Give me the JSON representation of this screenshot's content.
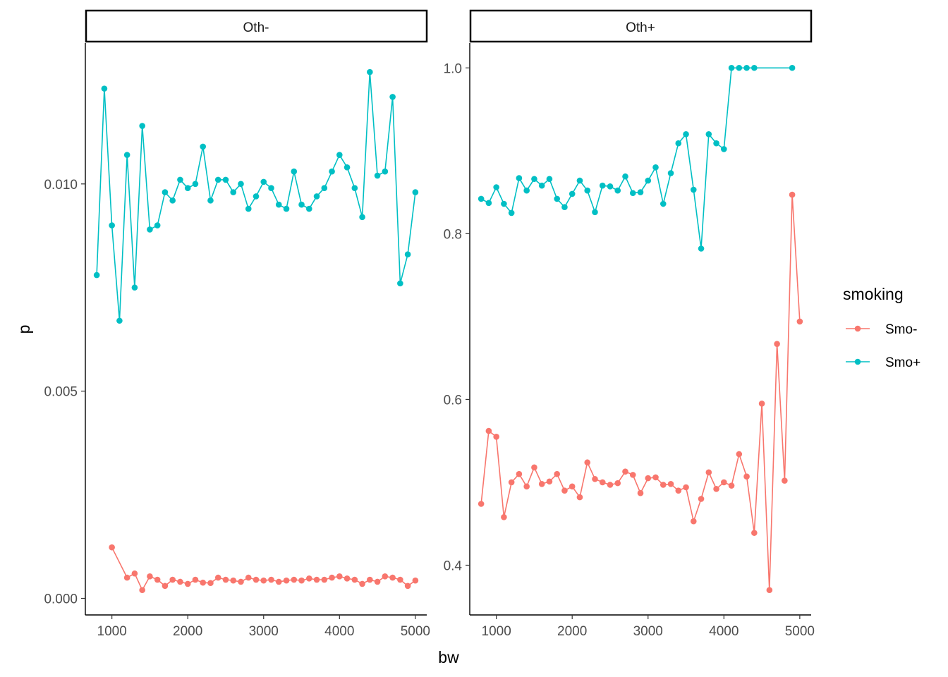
{
  "chart_data": {
    "type": "line",
    "xlabel": "bw",
    "ylabel": "p",
    "legend": {
      "title": "smoking",
      "position": "right",
      "entries": [
        {
          "label": "Smo-",
          "color": "#F8766D"
        },
        {
          "label": "Smo+",
          "color": "#00BFC4"
        }
      ]
    },
    "x_ticks": [
      1000,
      2000,
      3000,
      4000,
      5000
    ],
    "x_tick_labels": [
      "1000",
      "2000",
      "3000",
      "4000",
      "5000"
    ],
    "xlim": [
      650,
      5150
    ],
    "panels": [
      {
        "strip": "Oth-",
        "ylim": [
          -0.0004,
          0.0134
        ],
        "y_ticks": [
          0.0,
          0.005,
          0.01
        ],
        "y_tick_labels": [
          "0.000",
          "0.005",
          "0.010"
        ],
        "series": [
          {
            "name": "Smo-",
            "x": [
              1000,
              1200,
              1300,
              1400,
              1500,
              1600,
              1700,
              1800,
              1900,
              2000,
              2100,
              2200,
              2300,
              2400,
              2500,
              2600,
              2700,
              2800,
              2900,
              3000,
              3100,
              3200,
              3300,
              3400,
              3500,
              3600,
              3700,
              3800,
              3900,
              4000,
              4100,
              4200,
              4300,
              4400,
              4500,
              4600,
              4700,
              4800,
              4900,
              5000
            ],
            "y": [
              0.00123,
              0.0005,
              0.0006,
              0.0002,
              0.00053,
              0.00045,
              0.0003,
              0.00045,
              0.0004,
              0.00035,
              0.00045,
              0.00038,
              0.00037,
              0.0005,
              0.00045,
              0.00043,
              0.0004,
              0.0005,
              0.00045,
              0.00043,
              0.00045,
              0.0004,
              0.00043,
              0.00045,
              0.00043,
              0.00048,
              0.00045,
              0.00045,
              0.0005,
              0.00053,
              0.00048,
              0.00045,
              0.00035,
              0.00045,
              0.0004,
              0.00053,
              0.0005,
              0.00045,
              0.0003,
              0.00043
            ]
          },
          {
            "name": "Smo+",
            "x": [
              800,
              900,
              1000,
              1100,
              1200,
              1300,
              1400,
              1500,
              1600,
              1700,
              1800,
              1900,
              2000,
              2100,
              2200,
              2300,
              2400,
              2500,
              2600,
              2700,
              2800,
              2900,
              3000,
              3100,
              3200,
              3300,
              3400,
              3500,
              3600,
              3700,
              3800,
              3900,
              4000,
              4100,
              4200,
              4300,
              4400,
              4500,
              4600,
              4700,
              4800,
              4900,
              5000
            ],
            "y": [
              0.0078,
              0.0123,
              0.009,
              0.0067,
              0.0107,
              0.0075,
              0.0114,
              0.0089,
              0.009,
              0.0098,
              0.0096,
              0.0101,
              0.0099,
              0.01,
              0.0109,
              0.0096,
              0.0101,
              0.0101,
              0.0098,
              0.01,
              0.0094,
              0.0097,
              0.01005,
              0.0099,
              0.0095,
              0.0094,
              0.0103,
              0.0095,
              0.0094,
              0.0097,
              0.0099,
              0.0103,
              0.0107,
              0.0104,
              0.0099,
              0.0092,
              0.0127,
              0.0102,
              0.0103,
              0.0121,
              0.0076,
              0.0083,
              0.0098
            ]
          }
        ]
      },
      {
        "strip": "Oth+",
        "ylim": [
          0.34,
          1.03
        ],
        "y_ticks": [
          0.4,
          0.6,
          0.8,
          1.0
        ],
        "y_tick_labels": [
          "0.4",
          "0.6",
          "0.8",
          "1.0"
        ],
        "series": [
          {
            "name": "Smo-",
            "x": [
              800,
              900,
              1000,
              1100,
              1200,
              1300,
              1400,
              1500,
              1600,
              1700,
              1800,
              1900,
              2000,
              2100,
              2200,
              2300,
              2400,
              2500,
              2600,
              2700,
              2800,
              2900,
              3000,
              3100,
              3200,
              3300,
              3400,
              3500,
              3600,
              3700,
              3800,
              3900,
              4000,
              4100,
              4200,
              4300,
              4400,
              4500,
              4600,
              4700,
              4800,
              4900,
              5000
            ],
            "y": [
              0.474,
              0.562,
              0.555,
              0.458,
              0.5,
              0.51,
              0.495,
              0.518,
              0.498,
              0.501,
              0.51,
              0.49,
              0.495,
              0.482,
              0.524,
              0.504,
              0.5,
              0.497,
              0.499,
              0.513,
              0.509,
              0.487,
              0.505,
              0.506,
              0.497,
              0.498,
              0.49,
              0.494,
              0.453,
              0.48,
              0.512,
              0.492,
              0.5,
              0.496,
              0.534,
              0.507,
              0.439,
              0.595,
              0.37,
              0.667,
              0.502,
              0.847,
              0.694
            ]
          },
          {
            "name": "Smo+",
            "x": [
              800,
              900,
              1000,
              1100,
              1200,
              1300,
              1400,
              1500,
              1600,
              1700,
              1800,
              1900,
              2000,
              2100,
              2200,
              2300,
              2400,
              2500,
              2600,
              2700,
              2800,
              2900,
              3000,
              3100,
              3200,
              3300,
              3400,
              3500,
              3600,
              3700,
              3800,
              3900,
              4000,
              4100,
              4200,
              4300,
              4400,
              4900
            ],
            "y": [
              0.842,
              0.837,
              0.856,
              0.836,
              0.825,
              0.867,
              0.852,
              0.866,
              0.858,
              0.866,
              0.842,
              0.832,
              0.848,
              0.864,
              0.852,
              0.826,
              0.858,
              0.857,
              0.852,
              0.869,
              0.849,
              0.85,
              0.864,
              0.88,
              0.836,
              0.873,
              0.909,
              0.92,
              0.853,
              0.782,
              0.92,
              0.909,
              0.902,
              1.0,
              1.0,
              1.0,
              1.0,
              1.0
            ]
          }
        ]
      }
    ]
  }
}
